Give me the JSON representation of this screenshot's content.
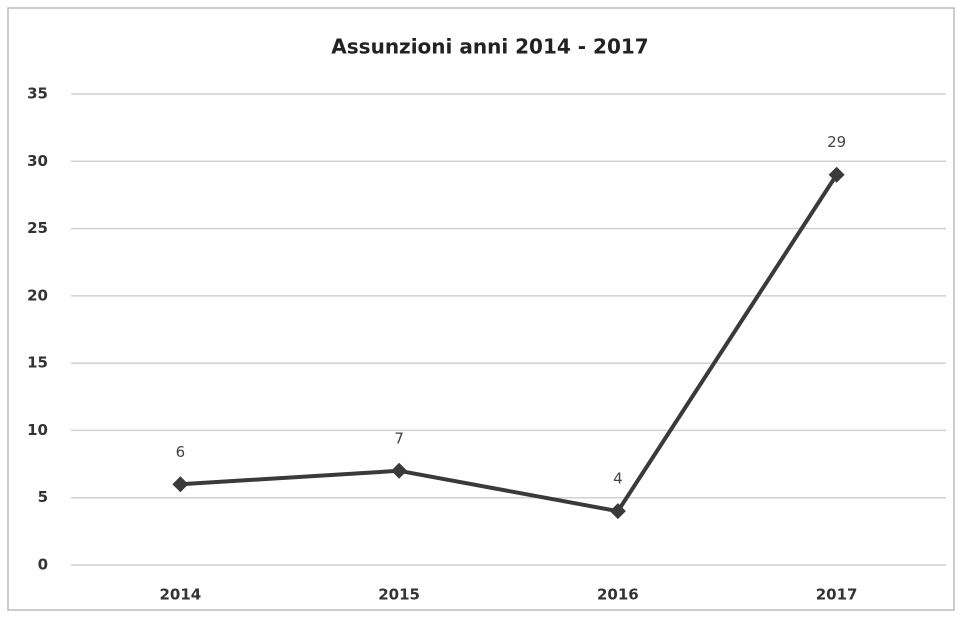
{
  "chart_data": {
    "type": "line",
    "title": "Assunzioni anni 2014 - 2017",
    "categories": [
      "2014",
      "2015",
      "2016",
      "2017"
    ],
    "series": [
      {
        "name": "Assunzioni",
        "color": "#3a3a3a",
        "values": [
          6,
          7,
          4,
          29
        ]
      }
    ],
    "ylim": [
      0,
      35
    ],
    "yticks": [
      0,
      5,
      10,
      15,
      20,
      25,
      30,
      35
    ],
    "grid": true,
    "data_labels": true
  }
}
